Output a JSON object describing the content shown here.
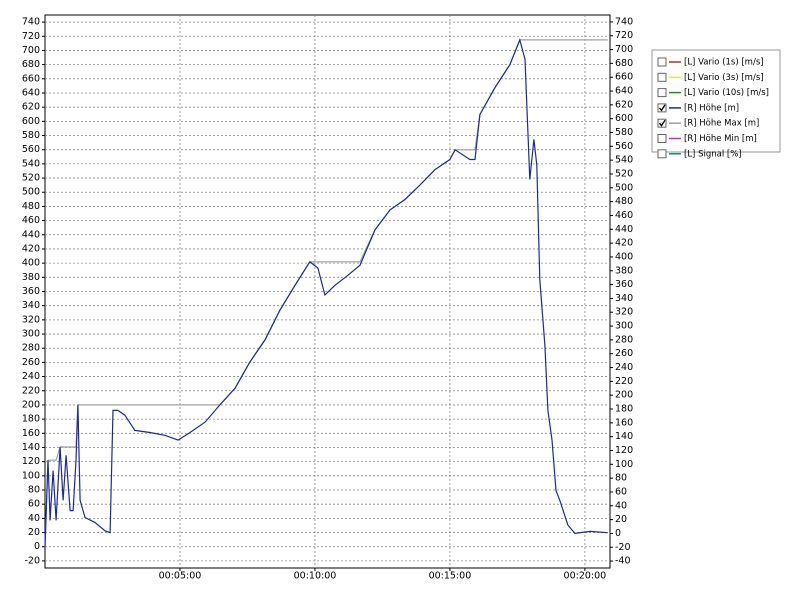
{
  "chart_data": {
    "type": "line",
    "x": [
      0,
      0.11,
      0.19,
      0.3,
      0.41,
      0.56,
      0.67,
      0.78,
      0.93,
      1.04,
      1.15,
      1.22,
      1.3,
      1.48,
      1.85,
      2.22,
      2.41,
      2.52,
      2.7,
      2.96,
      3.33,
      3.89,
      4.44,
      4.93,
      5.37,
      5.93,
      6.48,
      7.04,
      7.59,
      8.15,
      8.7,
      9.26,
      9.81,
      10.11,
      10.37,
      10.74,
      11.11,
      11.67,
      12.22,
      12.78,
      13.33,
      13.89,
      14.44,
      15,
      15.19,
      15.74,
      15.93,
      16.11,
      16.67,
      17.22,
      17.59,
      17.78,
      17.96,
      18.11,
      18.22,
      18.33,
      18.52,
      18.63,
      18.78,
      18.93,
      19.07,
      19.37,
      19.63,
      20.19,
      20.85
    ],
    "series": [
      {
        "name": "[L] Vario (1s) [m/s]",
        "color": "#b03030",
        "checked": false
      },
      {
        "name": "[L] Vario (3s) [m/s]",
        "color": "#e8e060",
        "checked": false
      },
      {
        "name": "[L] Vario (10s) [m/s]",
        "color": "#209020",
        "checked": false
      },
      {
        "name": "[R] Höhe [m]",
        "color": "#1c2a9c",
        "checked": true,
        "axis": "y2",
        "values": [
          -20,
          106,
          19,
          91,
          19,
          125,
          48,
          113,
          33,
          33,
          106,
          186,
          48,
          23,
          16,
          4,
          1,
          178,
          178,
          171,
          149,
          146,
          142,
          135,
          146,
          161,
          186,
          210,
          248,
          280,
          323,
          359,
          393,
          384,
          345,
          359,
          370,
          388,
          439,
          468,
          483,
          504,
          526,
          541,
          555,
          541,
          541,
          606,
          645,
          678,
          714,
          686,
          512,
          570,
          533,
          367,
          272,
          178,
          135,
          62,
          48,
          12,
          0,
          3,
          1
        ]
      },
      {
        "name": "[R] Höhe Max [m]",
        "color": "#a0a0a0",
        "checked": true,
        "axis": "y2",
        "values": [
          -20,
          106,
          106,
          106,
          106,
          125,
          125,
          125,
          125,
          125,
          125,
          186,
          186,
          186,
          186,
          186,
          186,
          186,
          186,
          186,
          186,
          186,
          186,
          186,
          186,
          186,
          186,
          210,
          248,
          280,
          323,
          359,
          393,
          393,
          393,
          393,
          393,
          393,
          439,
          468,
          483,
          504,
          526,
          541,
          555,
          555,
          555,
          606,
          645,
          678,
          714,
          714,
          714,
          714,
          714,
          714,
          714,
          714,
          714,
          714,
          714,
          714,
          714,
          714,
          714
        ]
      },
      {
        "name": "[R] Höhe Min [m]",
        "color": "#c030c0",
        "checked": false
      },
      {
        "name": "[L] Signal [%]",
        "color": "#208080",
        "checked": false
      }
    ],
    "xlim": [
      0,
      20.93
    ],
    "xticks": [
      {
        "value": 5,
        "label": "00:05:00"
      },
      {
        "value": 10,
        "label": "00:10:00"
      },
      {
        "value": 15,
        "label": "00:15:00"
      },
      {
        "value": 20,
        "label": "00:20:00"
      }
    ],
    "ylim": [
      -30,
      750
    ],
    "yticks": [
      -20,
      0,
      20,
      40,
      60,
      80,
      100,
      120,
      140,
      160,
      180,
      200,
      220,
      240,
      260,
      280,
      300,
      320,
      340,
      360,
      380,
      400,
      420,
      440,
      460,
      480,
      500,
      520,
      540,
      560,
      580,
      600,
      620,
      640,
      660,
      680,
      700,
      720,
      740
    ],
    "y2lim": [
      -50,
      750
    ],
    "y2ticks": [
      -40,
      -20,
      0,
      20,
      40,
      60,
      80,
      100,
      120,
      140,
      160,
      180,
      200,
      220,
      240,
      260,
      280,
      300,
      320,
      340,
      360,
      380,
      400,
      420,
      440,
      460,
      480,
      500,
      520,
      540,
      560,
      580,
      600,
      620,
      640,
      660,
      680,
      700,
      720,
      740
    ],
    "grid": true,
    "legend": "right"
  }
}
